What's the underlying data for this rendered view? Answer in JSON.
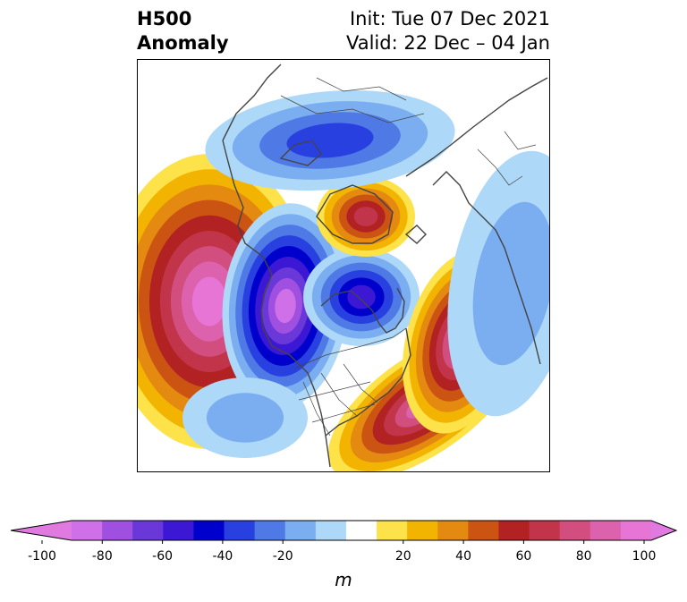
{
  "title": {
    "left_line1": "H500",
    "left_line2": "Anomaly",
    "right_line1": "Init: Tue 07 Dec 2021",
    "right_line2": "Valid: 22 Dec – 04 Jan"
  },
  "colorbar": {
    "unit": "m",
    "ticks": [
      "-100",
      "-80",
      "-60",
      "-40",
      "-20",
      "20",
      "40",
      "60",
      "80",
      "100"
    ],
    "tick_values": [
      -100,
      -80,
      -60,
      -40,
      -20,
      20,
      40,
      60,
      80,
      100
    ],
    "extend": "both",
    "levels": [
      {
        "range": "< -100",
        "color": "#e07ae0"
      },
      {
        "range": "-100 to -90",
        "color": "#d070e8"
      },
      {
        "range": "-90 to -80",
        "color": "#a050e0"
      },
      {
        "range": "-80 to -70",
        "color": "#6a38d8"
      },
      {
        "range": "-70 to -60",
        "color": "#3c18d4"
      },
      {
        "range": "-60 to -50",
        "color": "#0000cc"
      },
      {
        "range": "-50 to -40",
        "color": "#2840e0"
      },
      {
        "range": "-40 to -30",
        "color": "#4f7ae6"
      },
      {
        "range": "-30 to -20",
        "color": "#7aaef0"
      },
      {
        "range": "-20 to -10",
        "color": "#aed8f8"
      },
      {
        "range": "-10 to 10",
        "color": "#ffffff"
      },
      {
        "range": "10 to 20",
        "color": "#fde24a"
      },
      {
        "range": "20 to 30",
        "color": "#f2b400"
      },
      {
        "range": "30 to 40",
        "color": "#e48a10"
      },
      {
        "range": "40 to 50",
        "color": "#cc5412"
      },
      {
        "range": "50 to 60",
        "color": "#b22222"
      },
      {
        "range": "60 to 70",
        "color": "#c2344a"
      },
      {
        "range": "70 to 80",
        "color": "#d24e7e"
      },
      {
        "range": "80 to 90",
        "color": "#dc62ae"
      },
      {
        "range": "90 to 100",
        "color": "#e675d6"
      },
      {
        "range": "> 100",
        "color": "#e07ae0"
      }
    ]
  },
  "map": {
    "projection": "north-polar-stereographic",
    "features": [
      "coastlines",
      "country-borders",
      "us-state-borders"
    ],
    "anomaly_centers": [
      {
        "region": "Gulf of Alaska / NE Pacific",
        "sign": "positive",
        "max_m": 100
      },
      {
        "region": "Western North America",
        "sign": "negative",
        "max_m": -100
      },
      {
        "region": "Central & Eastern Canada",
        "sign": "negative",
        "max_m": -60
      },
      {
        "region": "Southeastern United States",
        "sign": "positive",
        "max_m": 90
      },
      {
        "region": "North Atlantic",
        "sign": "positive",
        "max_m": 90
      },
      {
        "region": "Eastern Siberia",
        "sign": "positive",
        "max_m": 60
      },
      {
        "region": "Arctic / Northern Europe",
        "sign": "negative",
        "max_m": -40
      }
    ]
  }
}
